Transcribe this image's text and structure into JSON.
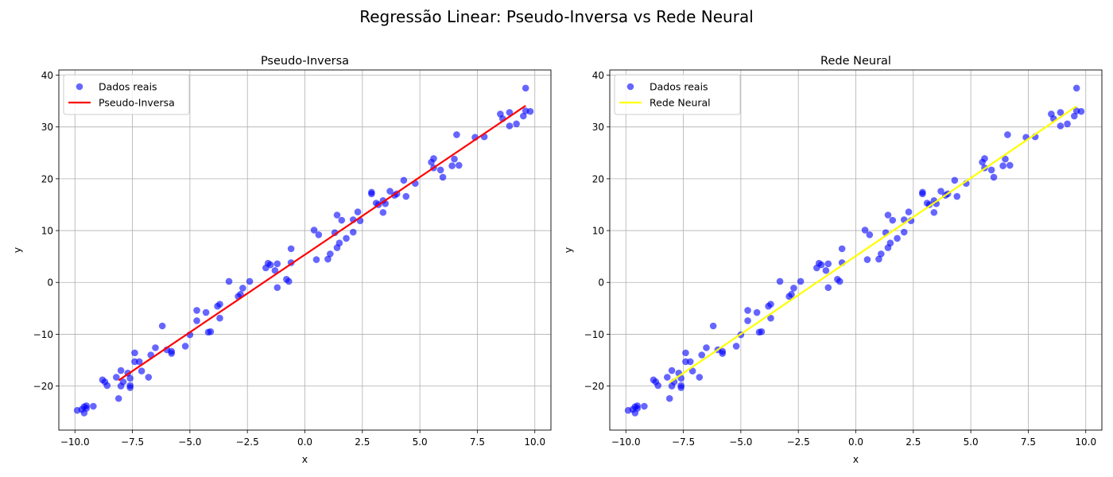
{
  "suptitle": "Regressão Linear: Pseudo-Inversa vs Rede Neural",
  "chart_data": [
    {
      "type": "scatter",
      "title": "Pseudo-Inversa",
      "xlabel": "x",
      "ylabel": "y",
      "xlim": [
        -10.7,
        10.7
      ],
      "ylim": [
        -28.5,
        41
      ],
      "xticks": [
        -10.0,
        -7.5,
        -5.0,
        -2.5,
        0.0,
        2.5,
        5.0,
        7.5,
        10.0
      ],
      "xtick_labels": [
        "−10.0",
        "−7.5",
        "−5.0",
        "−2.5",
        "0.0",
        "2.5",
        "5.0",
        "7.5",
        "10.0"
      ],
      "yticks": [
        -20,
        -10,
        0,
        10,
        20,
        30,
        40
      ],
      "ytick_labels": [
        "−20",
        "−10",
        "0",
        "10",
        "20",
        "30",
        "40"
      ],
      "grid": true,
      "legend_position": "upper-left",
      "series": [
        {
          "name": "Dados reais",
          "kind": "scatter",
          "color": "#0000ff",
          "x": [
            -9.9,
            -9.7,
            -9.6,
            -9.6,
            -9.5,
            -9.5,
            -9.2,
            -8.8,
            -8.7,
            -8.6,
            -8.2,
            -8.1,
            -8.0,
            -8.0,
            -7.9,
            -7.7,
            -7.6,
            -7.6,
            -7.6,
            -7.4,
            -7.4,
            -7.2,
            -7.1,
            -6.8,
            -6.7,
            -6.5,
            -6.2,
            -6.0,
            -5.8,
            -5.8,
            -5.2,
            -5.0,
            -4.7,
            -4.7,
            -4.3,
            -4.2,
            -4.1,
            -3.8,
            -3.7,
            -3.7,
            -3.3,
            -2.9,
            -2.8,
            -2.7,
            -2.4,
            -1.7,
            -1.6,
            -1.5,
            -1.3,
            -1.2,
            -1.2,
            -0.8,
            -0.7,
            -0.6,
            -0.6,
            0.4,
            0.5,
            0.6,
            1.0,
            1.1,
            1.3,
            1.4,
            1.4,
            1.5,
            1.6,
            1.8,
            2.1,
            2.1,
            2.3,
            2.4,
            2.9,
            2.9,
            3.1,
            3.2,
            3.4,
            3.4,
            3.5,
            3.7,
            3.9,
            4.0,
            4.3,
            4.4,
            4.8,
            5.5,
            5.6,
            5.6,
            5.9,
            6.0,
            6.4,
            6.5,
            6.6,
            6.7,
            7.4,
            7.8,
            8.5,
            8.6,
            8.9,
            8.9,
            9.2,
            9.5,
            9.6,
            9.6,
            9.8
          ],
          "y": [
            -24.7,
            -24.5,
            -25.2,
            -24.0,
            -24.3,
            -23.8,
            -23.9,
            -18.8,
            -19.2,
            -19.9,
            -18.3,
            -22.4,
            -20.0,
            -17.0,
            -19.2,
            -17.5,
            -18.5,
            -19.9,
            -20.3,
            -13.6,
            -15.3,
            -15.3,
            -17.1,
            -18.3,
            -14.0,
            -12.6,
            -8.4,
            -13.0,
            -13.3,
            -13.7,
            -12.3,
            -10.1,
            -5.4,
            -7.4,
            -5.8,
            -9.6,
            -9.5,
            -4.6,
            -4.2,
            -6.9,
            0.2,
            -2.7,
            -2.3,
            -1.1,
            0.2,
            2.8,
            3.7,
            3.4,
            2.3,
            -1.0,
            3.6,
            0.6,
            0.2,
            3.8,
            6.5,
            10.1,
            4.4,
            9.2,
            4.5,
            5.5,
            9.6,
            13.0,
            6.7,
            7.6,
            12.0,
            8.5,
            12.1,
            9.7,
            13.6,
            11.9,
            17.1,
            17.4,
            15.3,
            15.0,
            13.5,
            15.8,
            15.2,
            17.6,
            16.8,
            17.1,
            19.7,
            16.6,
            19.1,
            23.2,
            22.1,
            23.9,
            21.7,
            20.3,
            22.5,
            23.8,
            28.5,
            22.6,
            28.0,
            28.1,
            32.5,
            31.6,
            30.2,
            32.8,
            30.6,
            32.1,
            33.1,
            37.5,
            33.0
          ]
        },
        {
          "name": "Pseudo-Inversa",
          "kind": "line",
          "color": "#ff0000",
          "x": [
            -8.1,
            9.6
          ],
          "y": [
            -18.9,
            34.1
          ]
        }
      ]
    },
    {
      "type": "scatter",
      "title": "Rede Neural",
      "xlabel": "x",
      "ylabel": "y",
      "xlim": [
        -10.7,
        10.7
      ],
      "ylim": [
        -28.5,
        41
      ],
      "xticks": [
        -10.0,
        -7.5,
        -5.0,
        -2.5,
        0.0,
        2.5,
        5.0,
        7.5,
        10.0
      ],
      "xtick_labels": [
        "−10.0",
        "−7.5",
        "−5.0",
        "−2.5",
        "0.0",
        "2.5",
        "5.0",
        "7.5",
        "10.0"
      ],
      "yticks": [
        -20,
        -10,
        0,
        10,
        20,
        30,
        40
      ],
      "ytick_labels": [
        "−20",
        "−10",
        "0",
        "10",
        "20",
        "30",
        "40"
      ],
      "grid": true,
      "legend_position": "upper-left",
      "series": [
        {
          "name": "Dados reais",
          "kind": "scatter",
          "color": "#0000ff",
          "x": [
            -9.9,
            -9.7,
            -9.6,
            -9.6,
            -9.5,
            -9.5,
            -9.2,
            -8.8,
            -8.7,
            -8.6,
            -8.2,
            -8.1,
            -8.0,
            -8.0,
            -7.9,
            -7.7,
            -7.6,
            -7.6,
            -7.6,
            -7.4,
            -7.4,
            -7.2,
            -7.1,
            -6.8,
            -6.7,
            -6.5,
            -6.2,
            -6.0,
            -5.8,
            -5.8,
            -5.2,
            -5.0,
            -4.7,
            -4.7,
            -4.3,
            -4.2,
            -4.1,
            -3.8,
            -3.7,
            -3.7,
            -3.3,
            -2.9,
            -2.8,
            -2.7,
            -2.4,
            -1.7,
            -1.6,
            -1.5,
            -1.3,
            -1.2,
            -1.2,
            -0.8,
            -0.7,
            -0.6,
            -0.6,
            0.4,
            0.5,
            0.6,
            1.0,
            1.1,
            1.3,
            1.4,
            1.4,
            1.5,
            1.6,
            1.8,
            2.1,
            2.1,
            2.3,
            2.4,
            2.9,
            2.9,
            3.1,
            3.2,
            3.4,
            3.4,
            3.5,
            3.7,
            3.9,
            4.0,
            4.3,
            4.4,
            4.8,
            5.5,
            5.6,
            5.6,
            5.9,
            6.0,
            6.4,
            6.5,
            6.6,
            6.7,
            7.4,
            7.8,
            8.5,
            8.6,
            8.9,
            8.9,
            9.2,
            9.5,
            9.6,
            9.6,
            9.8
          ],
          "y": [
            -24.7,
            -24.5,
            -25.2,
            -24.0,
            -24.3,
            -23.8,
            -23.9,
            -18.8,
            -19.2,
            -19.9,
            -18.3,
            -22.4,
            -20.0,
            -17.0,
            -19.2,
            -17.5,
            -18.5,
            -19.9,
            -20.3,
            -13.6,
            -15.3,
            -15.3,
            -17.1,
            -18.3,
            -14.0,
            -12.6,
            -8.4,
            -13.0,
            -13.3,
            -13.7,
            -12.3,
            -10.1,
            -5.4,
            -7.4,
            -5.8,
            -9.6,
            -9.5,
            -4.6,
            -4.2,
            -6.9,
            0.2,
            -2.7,
            -2.3,
            -1.1,
            0.2,
            2.8,
            3.7,
            3.4,
            2.3,
            -1.0,
            3.6,
            0.6,
            0.2,
            3.8,
            6.5,
            10.1,
            4.4,
            9.2,
            4.5,
            5.5,
            9.6,
            13.0,
            6.7,
            7.6,
            12.0,
            8.5,
            12.1,
            9.7,
            13.6,
            11.9,
            17.1,
            17.4,
            15.3,
            15.0,
            13.5,
            15.8,
            15.2,
            17.6,
            16.8,
            17.1,
            19.7,
            16.6,
            19.1,
            23.2,
            22.1,
            23.9,
            21.7,
            20.3,
            22.5,
            23.8,
            28.5,
            22.6,
            28.0,
            28.1,
            32.5,
            31.6,
            30.2,
            32.8,
            30.6,
            32.1,
            33.1,
            37.5,
            33.0
          ]
        },
        {
          "name": "Rede Neural",
          "kind": "line",
          "color": "#ffff00",
          "x": [
            -8.1,
            9.6
          ],
          "y": [
            -19.3,
            34.0
          ]
        }
      ]
    }
  ]
}
